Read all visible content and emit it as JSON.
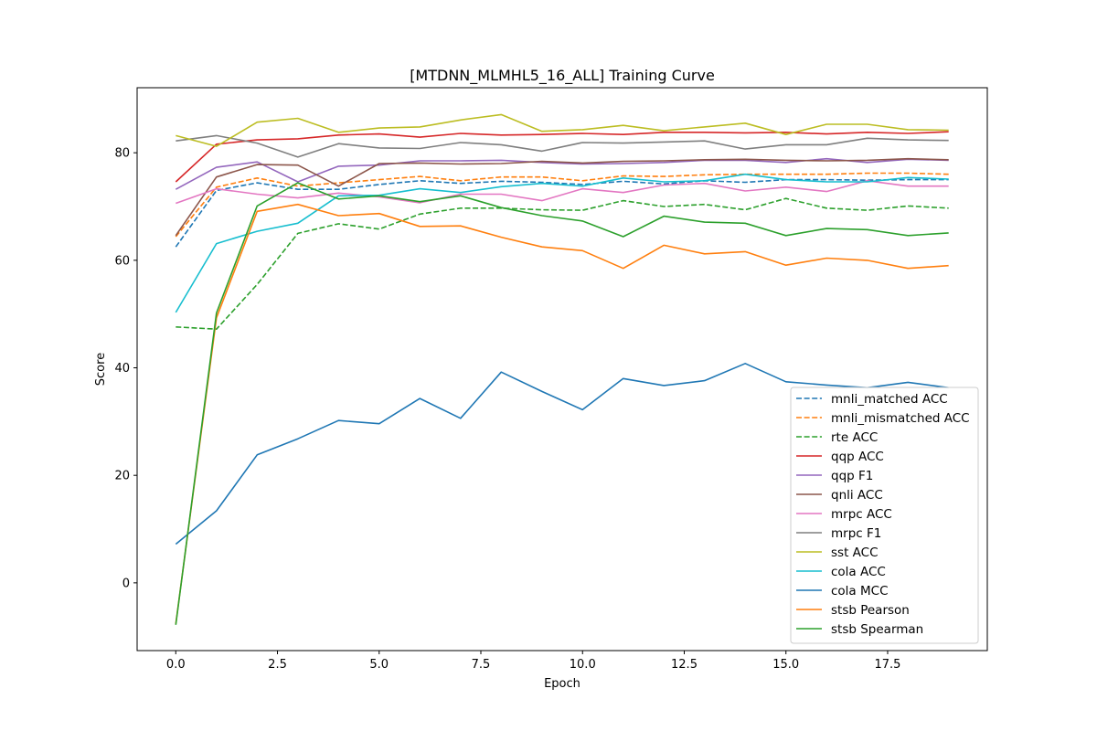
{
  "chart_data": {
    "type": "line",
    "title": "[MTDNN_MLMHL5_16_ALL] Training Curve",
    "xlabel": "Epoch",
    "ylabel": "Score",
    "xlim": [
      -0.95,
      19.95
    ],
    "ylim": [
      -12.6,
      92.1
    ],
    "xticks": [
      0.0,
      2.5,
      5.0,
      7.5,
      10.0,
      12.5,
      15.0,
      17.5
    ],
    "xtick_labels": [
      "0.0",
      "2.5",
      "5.0",
      "7.5",
      "10.0",
      "12.5",
      "15.0",
      "17.5"
    ],
    "yticks": [
      0,
      20,
      40,
      60,
      80
    ],
    "ytick_labels": [
      "0",
      "20",
      "40",
      "60",
      "80"
    ],
    "grid": false,
    "legend_position": "lower-right",
    "x": [
      0,
      1,
      2,
      3,
      4,
      5,
      6,
      7,
      8,
      9,
      10,
      11,
      12,
      13,
      14,
      15,
      16,
      17,
      18,
      19
    ],
    "series": [
      {
        "name": "mnli_matched ACC",
        "color": "#1f77b4",
        "dash": "dashed",
        "values": [
          62.5,
          73.0,
          74.4,
          73.2,
          73.2,
          74.1,
          74.8,
          74.3,
          74.7,
          74.5,
          74.1,
          74.7,
          74.2,
          74.8,
          74.5,
          75.0,
          75.0,
          74.9,
          75.0,
          75.0
        ]
      },
      {
        "name": "mnli_mismatched ACC",
        "color": "#ff7f0e",
        "dash": "dashed",
        "values": [
          64.4,
          73.6,
          75.3,
          73.8,
          74.4,
          75.0,
          75.6,
          74.8,
          75.5,
          75.5,
          74.8,
          75.7,
          75.6,
          75.9,
          76.0,
          76.0,
          76.0,
          76.2,
          76.2,
          76.0
        ]
      },
      {
        "name": "rte ACC",
        "color": "#2ca02c",
        "dash": "dashed",
        "values": [
          47.6,
          47.2,
          55.5,
          65.0,
          66.8,
          65.8,
          68.6,
          69.7,
          69.7,
          69.4,
          69.3,
          71.1,
          70.0,
          70.4,
          69.4,
          71.5,
          69.7,
          69.3,
          70.1,
          69.7
        ]
      },
      {
        "name": "qqp ACC",
        "color": "#d62728",
        "dash": "solid",
        "values": [
          74.6,
          81.6,
          82.4,
          82.6,
          83.3,
          83.5,
          82.9,
          83.6,
          83.3,
          83.4,
          83.6,
          83.4,
          83.8,
          83.8,
          83.7,
          83.8,
          83.5,
          83.8,
          83.6,
          83.9
        ]
      },
      {
        "name": "qqp F1",
        "color": "#9467bd",
        "dash": "solid",
        "values": [
          73.2,
          77.3,
          78.3,
          74.6,
          77.5,
          77.7,
          78.5,
          78.5,
          78.6,
          78.2,
          77.9,
          78.0,
          78.2,
          78.6,
          78.6,
          78.2,
          78.9,
          78.2,
          78.8,
          78.6
        ]
      },
      {
        "name": "qnli ACC",
        "color": "#8c564b",
        "dash": "solid",
        "values": [
          64.6,
          75.5,
          77.8,
          77.7,
          73.8,
          78.0,
          78.1,
          77.9,
          78.0,
          78.4,
          78.1,
          78.4,
          78.5,
          78.7,
          78.8,
          78.6,
          78.5,
          78.6,
          78.9,
          78.7
        ]
      },
      {
        "name": "mrpc ACC",
        "color": "#e377c2",
        "dash": "solid",
        "values": [
          70.6,
          73.3,
          72.3,
          71.6,
          72.5,
          71.8,
          70.7,
          72.3,
          72.3,
          71.1,
          73.3,
          72.6,
          74.0,
          74.3,
          72.9,
          73.6,
          72.8,
          74.8,
          73.8,
          73.8
        ]
      },
      {
        "name": "mrpc F1",
        "color": "#7f7f7f",
        "dash": "solid",
        "values": [
          82.2,
          83.2,
          81.8,
          79.2,
          81.7,
          80.9,
          80.8,
          81.9,
          81.5,
          80.3,
          81.9,
          81.8,
          82.0,
          82.2,
          80.7,
          81.5,
          81.5,
          82.7,
          82.4,
          82.3
        ]
      },
      {
        "name": "sst ACC",
        "color": "#bcbd22",
        "dash": "solid",
        "values": [
          83.2,
          81.2,
          85.7,
          86.4,
          83.8,
          84.6,
          84.8,
          86.1,
          87.1,
          84.0,
          84.3,
          85.1,
          84.1,
          84.8,
          85.5,
          83.4,
          85.3,
          85.3,
          84.3,
          84.2
        ]
      },
      {
        "name": "cola ACC",
        "color": "#17becf",
        "dash": "solid",
        "values": [
          50.3,
          63.1,
          65.4,
          66.9,
          72.0,
          72.1,
          73.3,
          72.6,
          73.7,
          74.3,
          73.8,
          75.3,
          74.6,
          74.8,
          76.0,
          75.0,
          74.6,
          74.6,
          75.4,
          75.1
        ]
      },
      {
        "name": "cola MCC",
        "color": "#1f77b4",
        "dash": "solid",
        "values": [
          7.2,
          13.4,
          23.8,
          26.8,
          30.2,
          29.6,
          34.3,
          30.6,
          39.2,
          35.6,
          32.2,
          38.0,
          36.7,
          37.6,
          40.8,
          37.4,
          36.8,
          36.3,
          37.3,
          36.3
        ]
      },
      {
        "name": "stsb Pearson",
        "color": "#ff7f0e",
        "dash": "solid",
        "values": [
          -7.6,
          49.3,
          69.1,
          70.4,
          68.3,
          68.7,
          66.3,
          66.4,
          64.3,
          62.5,
          61.8,
          58.5,
          62.8,
          61.2,
          61.6,
          59.1,
          60.4,
          60.0,
          58.5,
          59.0
        ]
      },
      {
        "name": "stsb Spearman",
        "color": "#2ca02c",
        "dash": "solid",
        "values": [
          -7.8,
          50.2,
          70.1,
          74.4,
          71.4,
          72.0,
          70.9,
          72.0,
          69.8,
          68.3,
          67.3,
          64.4,
          68.2,
          67.1,
          66.9,
          64.6,
          65.9,
          65.7,
          64.6,
          65.1
        ]
      }
    ]
  }
}
